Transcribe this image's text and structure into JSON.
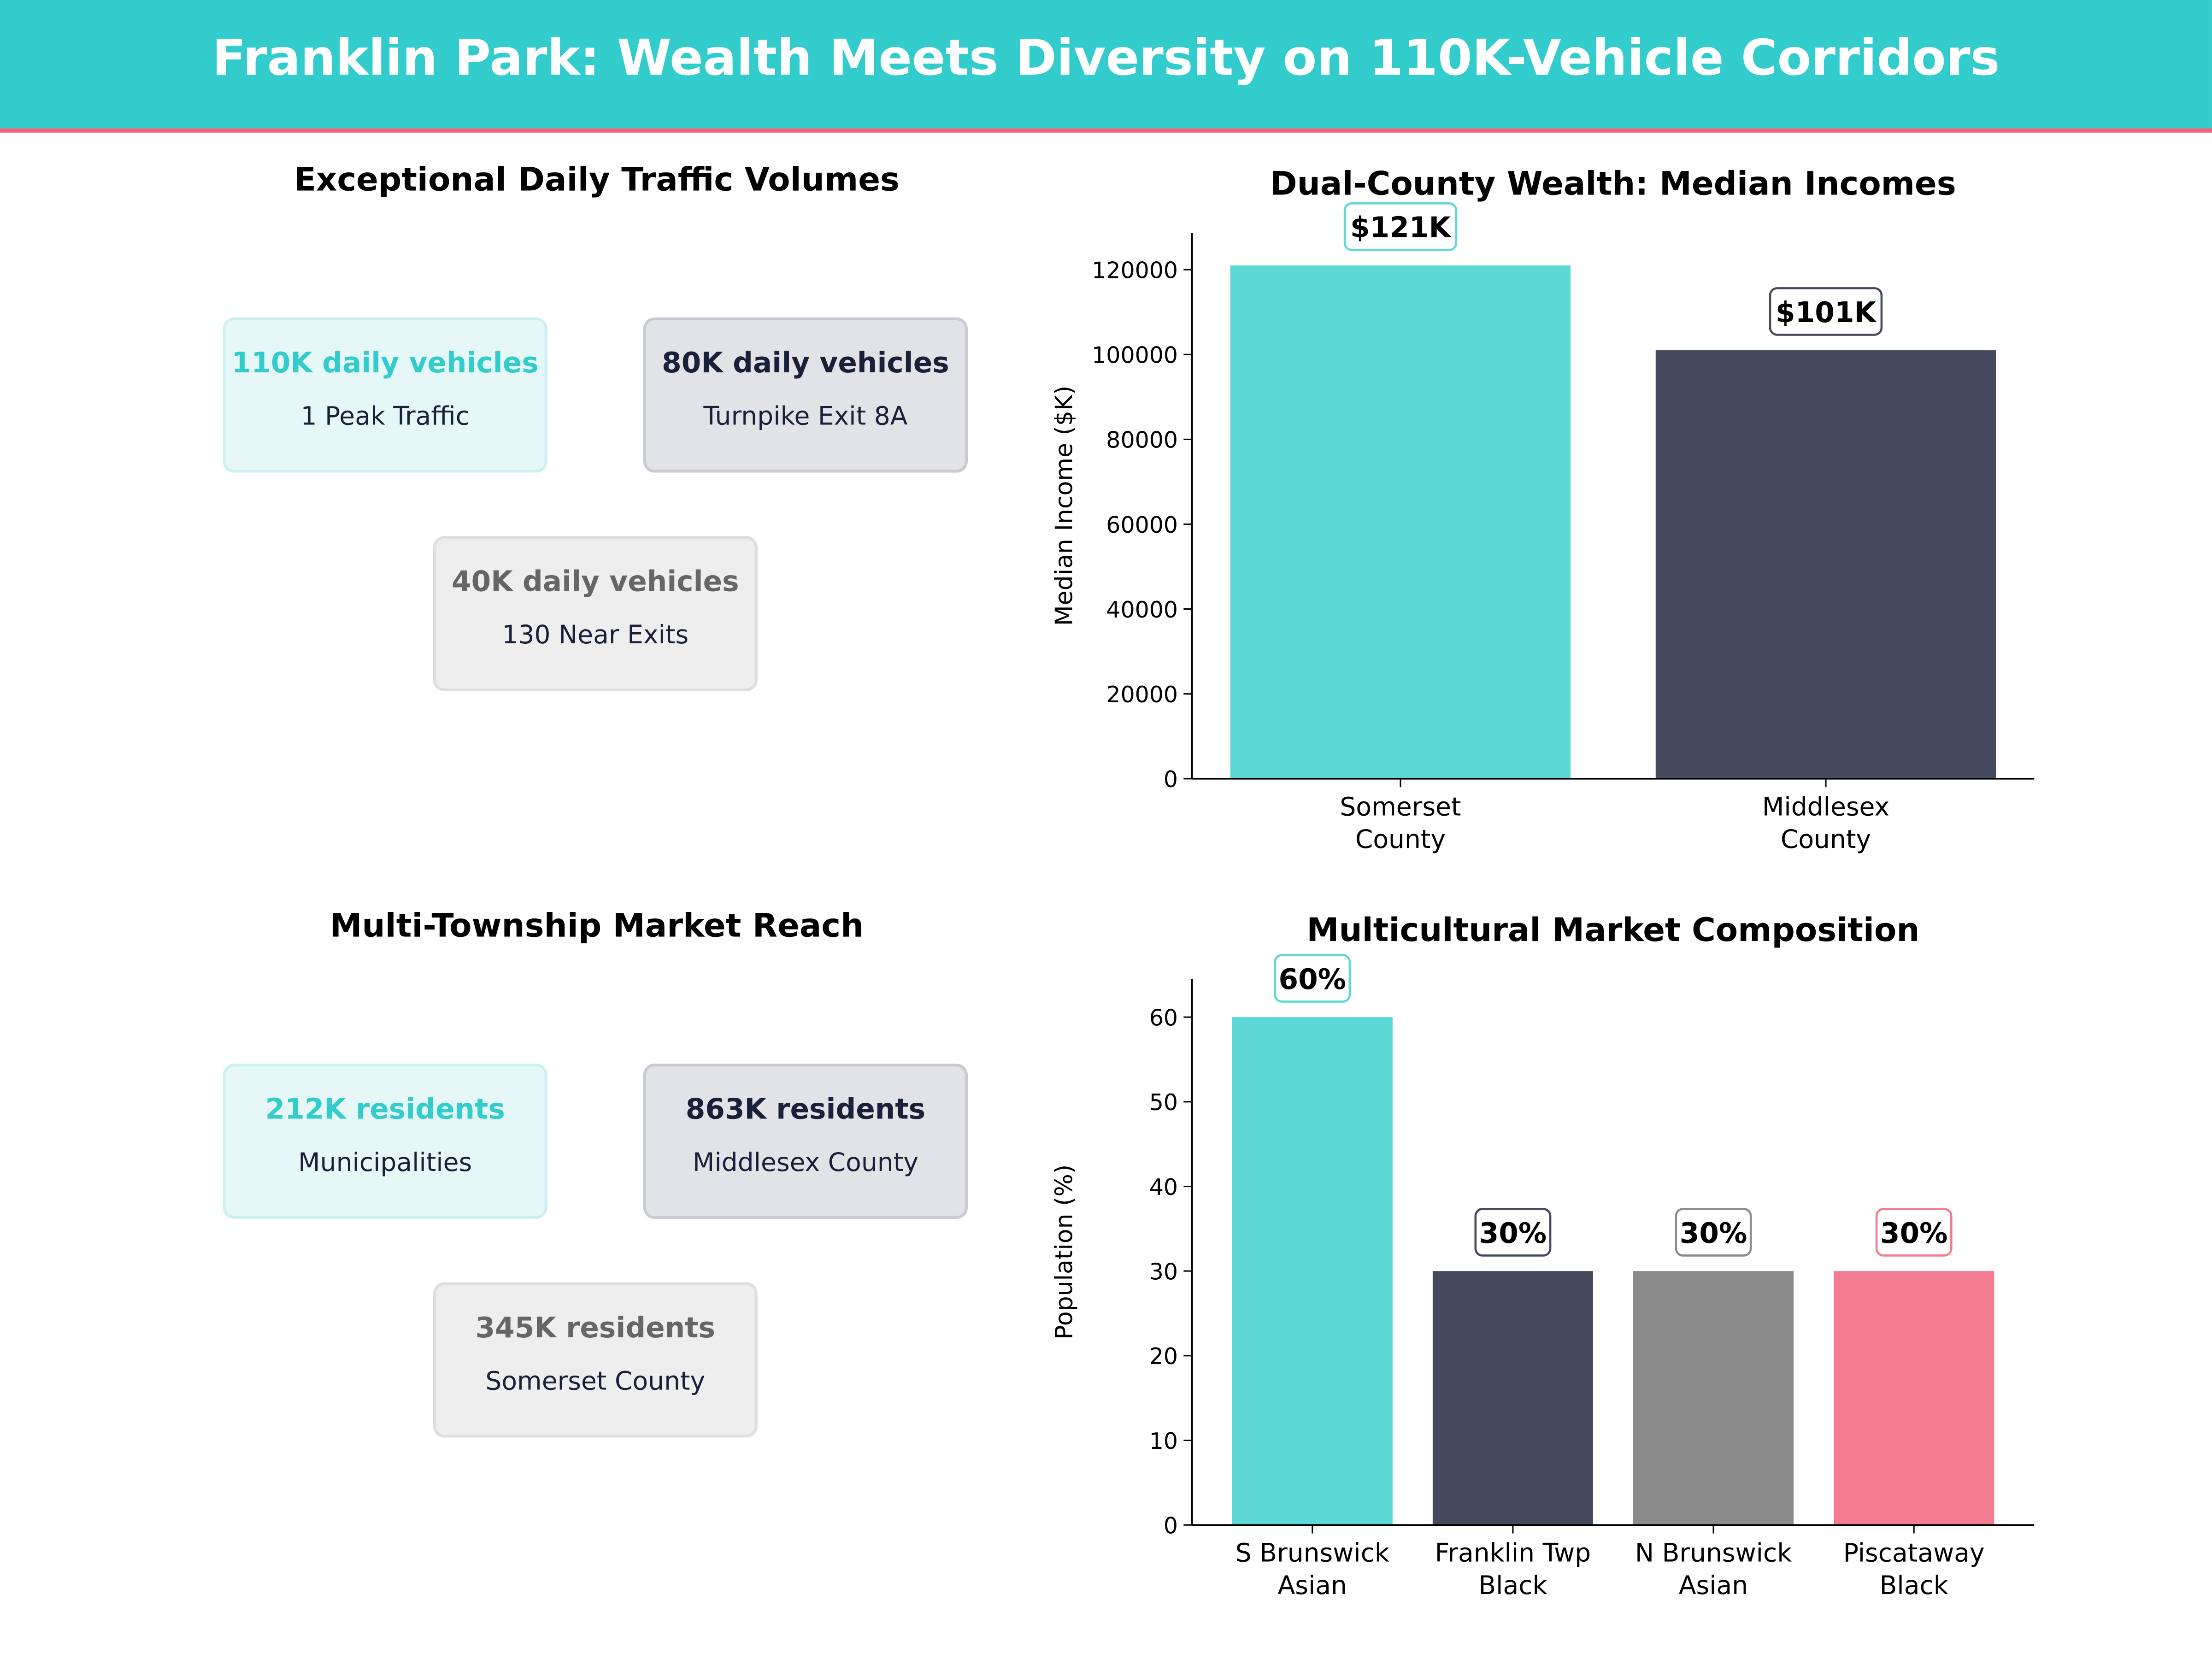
{
  "header": {
    "title": "Franklin Park: Wealth Meets Diversity on 110K-Vehicle Corridors"
  },
  "colors": {
    "teal": "#33CCCC",
    "accent_line": "#F0607A",
    "bar_teal": "#5CD8D5",
    "bar_navy": "#454A5F",
    "bar_gray": "#8C8C8C",
    "bar_pink": "#F47C91"
  },
  "traffic": {
    "title": "Exceptional Daily Traffic Volumes",
    "cards": [
      {
        "value": "110K daily vehicles",
        "label": "1 Peak Traffic"
      },
      {
        "value": "80K daily vehicles",
        "label": "Turnpike Exit 8A"
      },
      {
        "value": "40K daily vehicles",
        "label": "130 Near Exits"
      }
    ]
  },
  "reach": {
    "title": "Multi-Township Market Reach",
    "cards": [
      {
        "value": "212K residents",
        "label": "Municipalities"
      },
      {
        "value": "863K residents",
        "label": "Middlesex County"
      },
      {
        "value": "345K residents",
        "label": "Somerset County"
      }
    ]
  },
  "chart_data": [
    {
      "type": "bar",
      "title": "Dual-County Wealth: Median Incomes",
      "ylabel": "Median Income ($K)",
      "xlabel": "",
      "categories": [
        "Somerset\nCounty",
        "Middlesex\nCounty"
      ],
      "values": [
        121000,
        101000
      ],
      "data_labels": [
        "$121K",
        "$101K"
      ],
      "colors": [
        "#5CD8D5",
        "#454A5F"
      ],
      "ylim": [
        0,
        128700
      ],
      "yticks": [
        0,
        20000,
        40000,
        60000,
        80000,
        100000,
        120000
      ],
      "grid": false
    },
    {
      "type": "bar",
      "title": "Multicultural Market Composition",
      "ylabel": "Population (%)",
      "xlabel": "",
      "categories": [
        "S Brunswick\nAsian",
        "Franklin Twp\nBlack",
        "N Brunswick\nAsian",
        "Piscataway\nBlack"
      ],
      "values": [
        60,
        30,
        30,
        30
      ],
      "data_labels": [
        "60%",
        "30%",
        "30%",
        "30%"
      ],
      "colors": [
        "#5CD8D5",
        "#454A5F",
        "#8C8C8C",
        "#F47C91"
      ],
      "ylim": [
        0,
        64.5
      ],
      "yticks": [
        0,
        10,
        20,
        30,
        40,
        50,
        60
      ],
      "grid": false
    }
  ]
}
